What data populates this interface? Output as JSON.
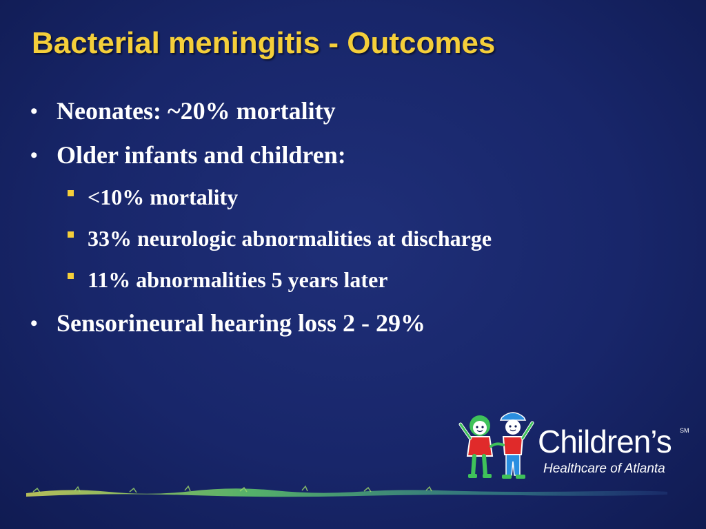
{
  "slide": {
    "title": "Bacterial meningitis - Outcomes",
    "bullets": [
      {
        "text": "Neonates:  ~20% mortality"
      },
      {
        "text": "Older infants and children:"
      },
      {
        "text": "<10% mortality"
      },
      {
        "text": "33% neurologic abnormalities at discharge"
      },
      {
        "text": "11% abnormalities 5 years later"
      },
      {
        "text": "Sensorineural hearing loss 2 - 29%"
      }
    ]
  },
  "logo": {
    "name": "Children’s",
    "service_mark": "SM",
    "subtitle": "Healthcare of Atlanta"
  },
  "colors": {
    "background": "#18266a",
    "title": "#f5cf3a",
    "text": "#ffffff",
    "sub_bullet_marker": "#f5cf3a",
    "logo_green": "#3fc25a",
    "logo_red": "#e02a2a",
    "logo_blue": "#2a8ee0"
  }
}
